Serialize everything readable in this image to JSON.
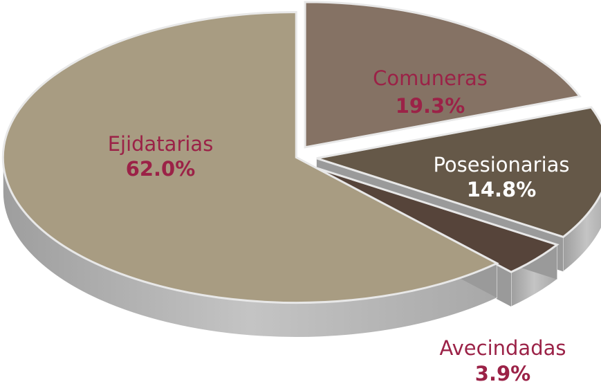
{
  "chart_data": {
    "type": "pie",
    "categories": [
      "Comuneras",
      "Posesionarias",
      "Avecindadas",
      "Ejidatarias"
    ],
    "values": [
      19.3,
      14.8,
      3.9,
      62.0
    ],
    "value_labels": [
      "19.3%",
      "14.8%",
      "3.9%",
      "62.0%"
    ],
    "colors": [
      "#857264",
      "#655848",
      "#56443a",
      "#a89c82"
    ]
  }
}
